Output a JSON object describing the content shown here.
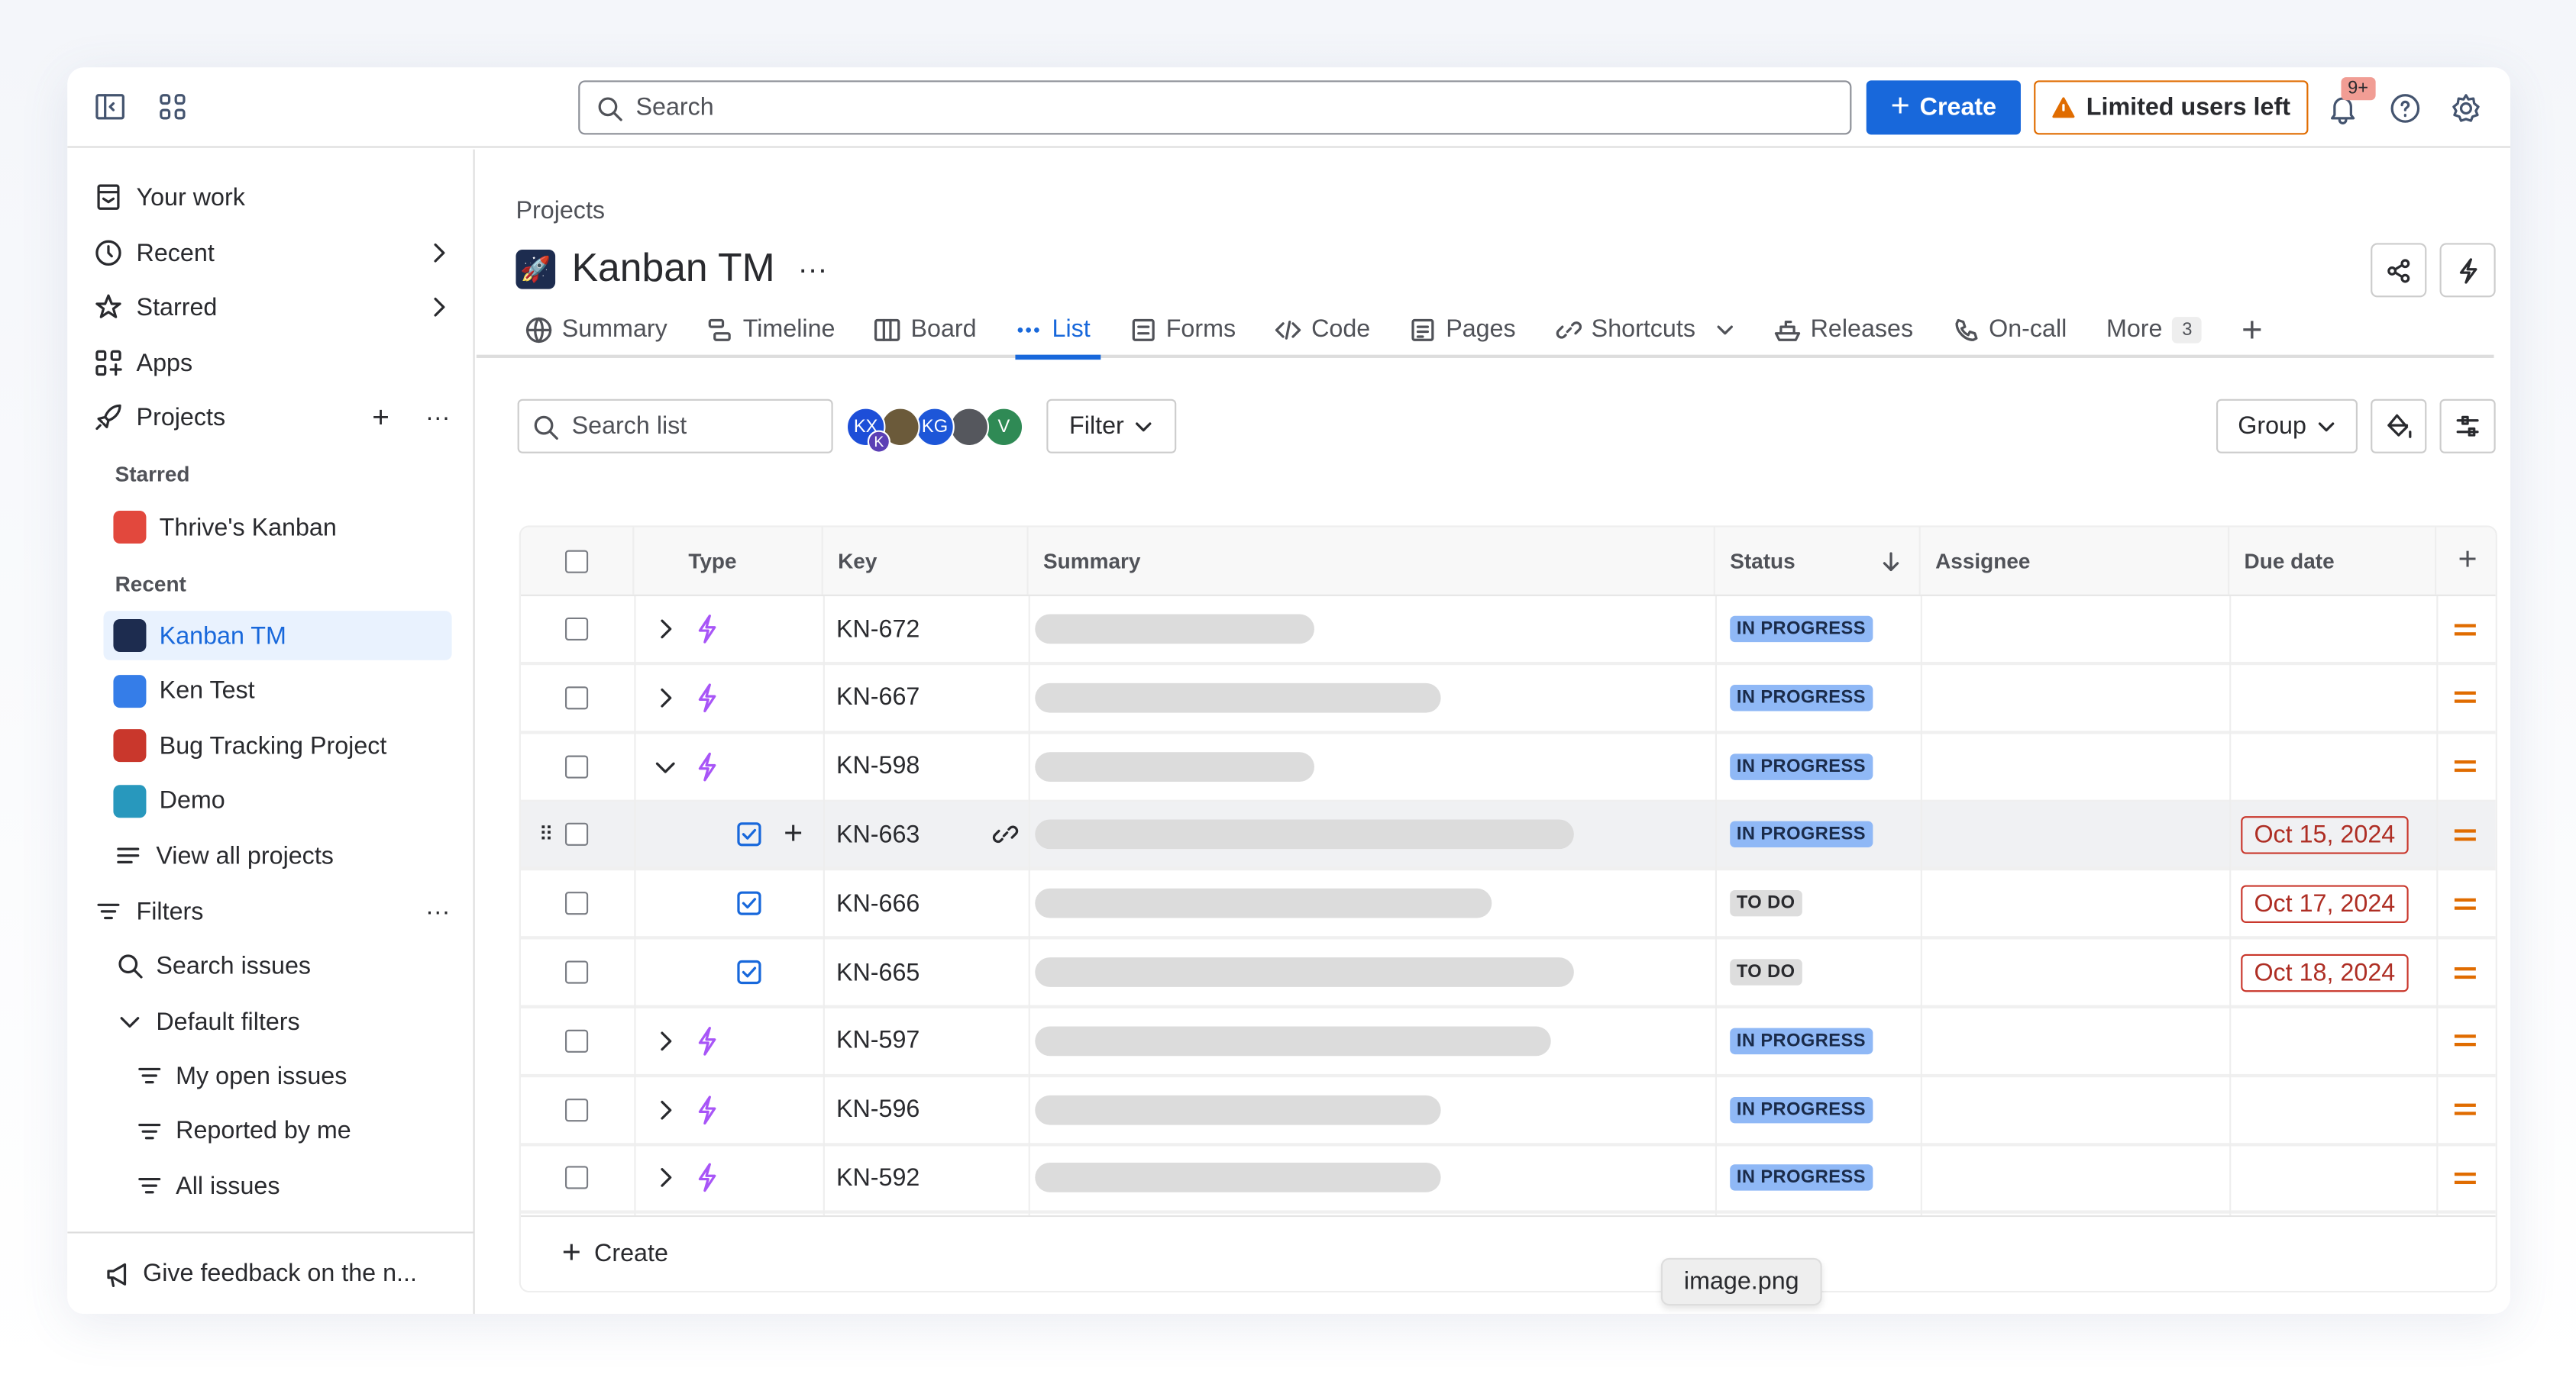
{
  "topbar": {
    "search_placeholder": "Search",
    "create_label": "Create",
    "limited_label": "Limited users left",
    "notification_count": "9+"
  },
  "sidebar": {
    "items": [
      {
        "label": "Your work"
      },
      {
        "label": "Recent"
      },
      {
        "label": "Starred"
      },
      {
        "label": "Apps"
      },
      {
        "label": "Projects"
      }
    ],
    "starred_heading": "Starred",
    "starred": [
      {
        "label": "Thrive's Kanban",
        "color": "#e2483d"
      }
    ],
    "recent_heading": "Recent",
    "recent": [
      {
        "label": "Kanban TM",
        "color": "#1d2c4f"
      },
      {
        "label": "Ken Test",
        "color": "#357de8"
      },
      {
        "label": "Bug Tracking Project",
        "color": "#c9372c"
      },
      {
        "label": "Demo",
        "color": "#2898bd"
      }
    ],
    "view_all": "View all projects",
    "filters": "Filters",
    "search_issues": "Search issues",
    "default_filters": "Default filters",
    "filter_items": [
      {
        "label": "My open issues"
      },
      {
        "label": "Reported by me"
      },
      {
        "label": "All issues"
      }
    ],
    "feedback": "Give feedback on the n..."
  },
  "main": {
    "breadcrumb": "Projects",
    "title": "Kanban TM",
    "tabs": [
      {
        "label": "Summary",
        "icon": "globe-icon"
      },
      {
        "label": "Timeline",
        "icon": "timeline-icon"
      },
      {
        "label": "Board",
        "icon": "board-icon"
      },
      {
        "label": "List",
        "icon": "list-icon",
        "active": true
      },
      {
        "label": "Forms",
        "icon": "forms-icon"
      },
      {
        "label": "Code",
        "icon": "code-icon"
      },
      {
        "label": "Pages",
        "icon": "pages-icon"
      },
      {
        "label": "Shortcuts",
        "icon": "link-icon"
      },
      {
        "label": "Releases",
        "icon": "ship-icon"
      },
      {
        "label": "On-call",
        "icon": "phone-icon"
      }
    ],
    "more_label": "More",
    "more_count": "3",
    "search_list_placeholder": "Search list",
    "avatars": [
      {
        "initials": "KX",
        "color": "#1d4ed8"
      },
      {
        "initials": "",
        "color": "#6b5a3a"
      },
      {
        "initials": "KG",
        "color": "#1d56d8"
      },
      {
        "initials": "",
        "color": "#55575d"
      },
      {
        "initials": "V",
        "color": "#2f8a55"
      }
    ],
    "avatar_sub": "K",
    "filter_label": "Filter",
    "group_label": "Group"
  },
  "table": {
    "headers": {
      "type": "Type",
      "key": "Key",
      "summary": "Summary",
      "status": "Status",
      "assignee": "Assignee",
      "due": "Due date"
    },
    "rows": [
      {
        "expand": "right",
        "type": "epic",
        "key": "KN-672",
        "status": "IN PROGRESS",
        "due": ""
      },
      {
        "expand": "right",
        "type": "epic",
        "key": "KN-667",
        "status": "IN PROGRESS",
        "due": ""
      },
      {
        "expand": "down",
        "type": "epic",
        "key": "KN-598",
        "status": "IN PROGRESS",
        "due": ""
      },
      {
        "expand": "",
        "type": "task",
        "key": "KN-663",
        "status": "IN PROGRESS",
        "due": "Oct 15, 2024",
        "hover": true
      },
      {
        "expand": "",
        "type": "task",
        "key": "KN-666",
        "status": "TO DO",
        "due": "Oct 17, 2024"
      },
      {
        "expand": "",
        "type": "task",
        "key": "KN-665",
        "status": "TO DO",
        "due": "Oct 18, 2024"
      },
      {
        "expand": "right",
        "type": "epic",
        "key": "KN-597",
        "status": "IN PROGRESS",
        "due": ""
      },
      {
        "expand": "right",
        "type": "epic",
        "key": "KN-596",
        "status": "IN PROGRESS",
        "due": ""
      },
      {
        "expand": "right",
        "type": "epic",
        "key": "KN-592",
        "status": "IN PROGRESS",
        "due": ""
      }
    ],
    "create_label": "Create",
    "priority": "medium"
  },
  "tooltip": "image.png"
}
